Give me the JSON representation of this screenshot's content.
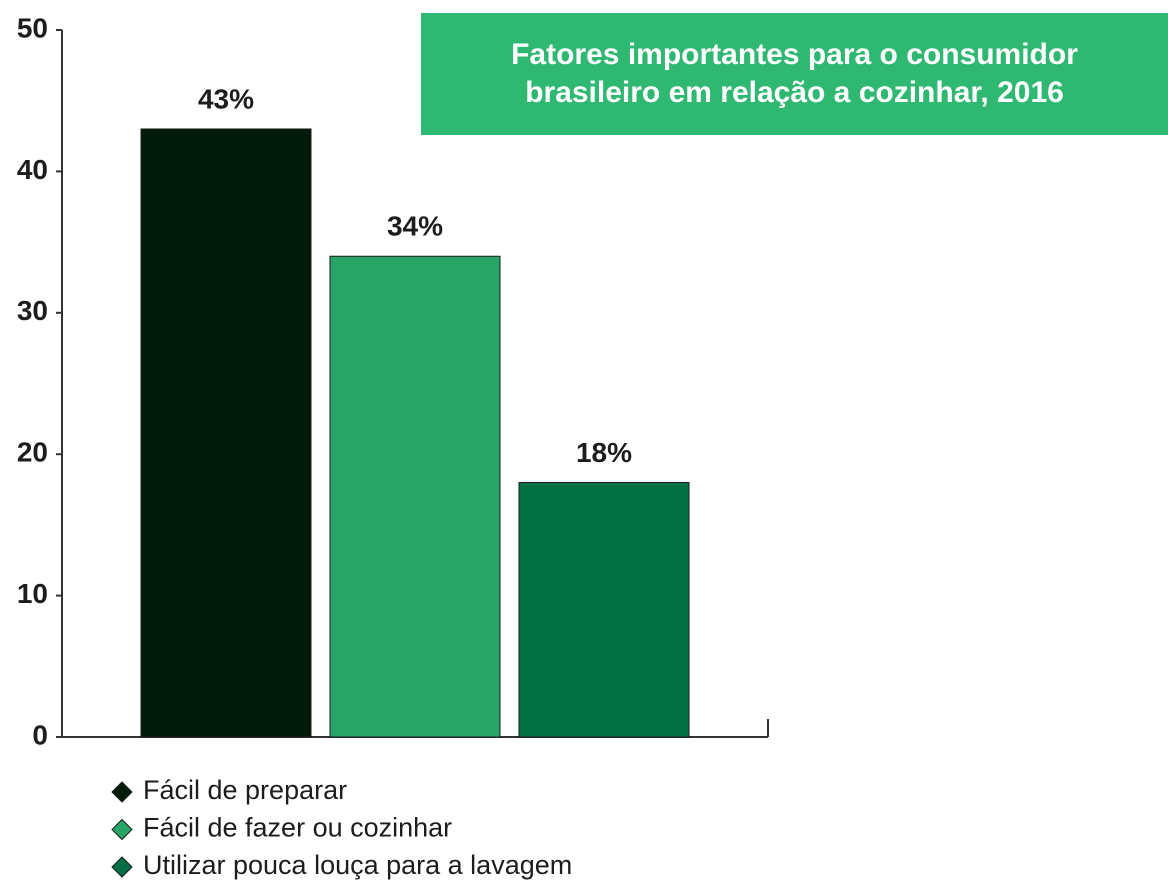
{
  "chart_data": {
    "type": "bar",
    "title": "Fatores importantes para o consumidor brasileiro em relação a cozinhar, 2016",
    "categories": [
      null
    ],
    "series": [
      {
        "name": "Fácil de preparar",
        "color": "#021a0a",
        "values": [
          43
        ],
        "value_labels": [
          "43%"
        ]
      },
      {
        "name": "Fácil de fazer ou cozinhar",
        "color": "#27a567",
        "values": [
          34
        ],
        "value_labels": [
          "34%"
        ]
      },
      {
        "name": "Utilizar pouca louça para a lavagem",
        "color": "#006f43",
        "values": [
          18
        ],
        "value_labels": [
          "18%"
        ]
      }
    ],
    "ylim": [
      0,
      50
    ],
    "yticks": [
      0,
      10,
      20,
      30,
      40,
      50
    ],
    "grid": false,
    "legend": "bottom"
  }
}
